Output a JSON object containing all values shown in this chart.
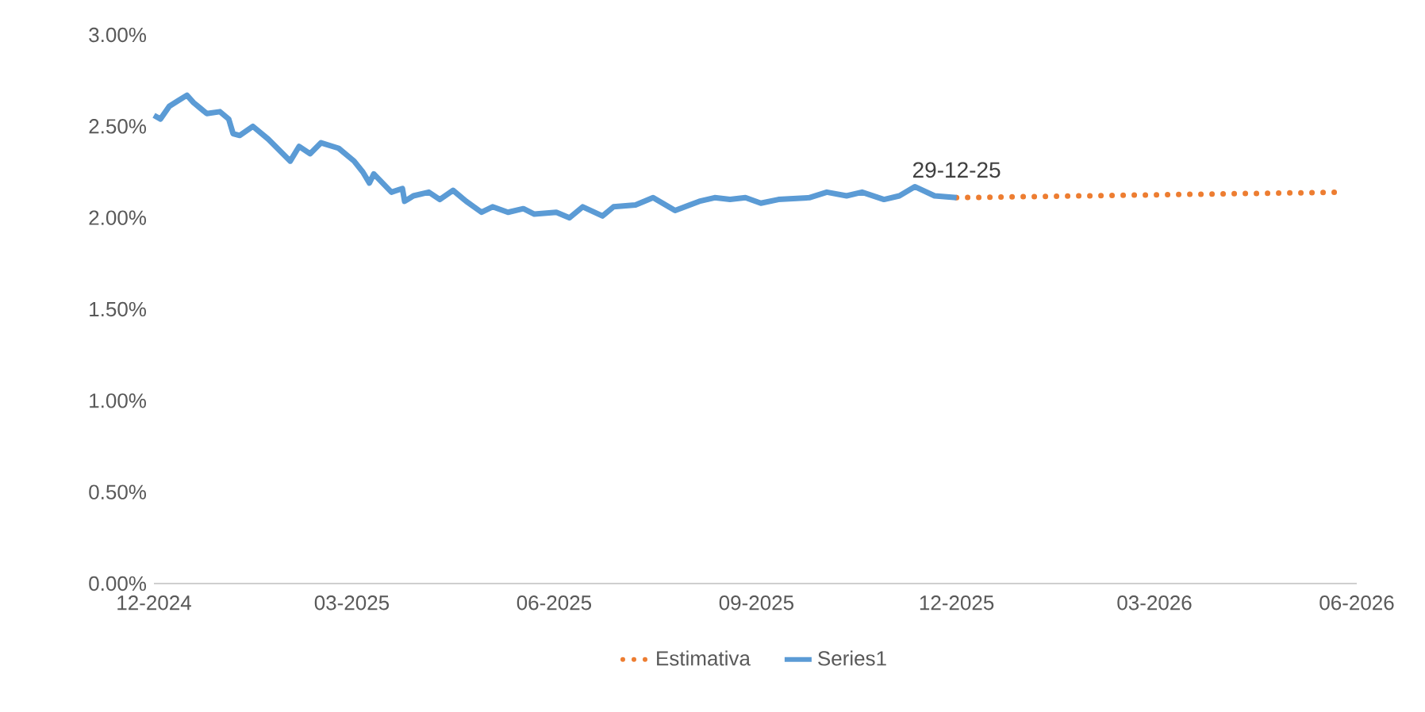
{
  "chart_data": {
    "type": "line",
    "xlim": [
      "2024-12-29",
      "2026-06-29"
    ],
    "xticks": [
      {
        "value": "2024-12-29",
        "label": "12-2024"
      },
      {
        "value": "2025-03-29",
        "label": "03-2025"
      },
      {
        "value": "2025-06-29",
        "label": "06-2025"
      },
      {
        "value": "2025-09-29",
        "label": "09-2025"
      },
      {
        "value": "2025-12-29",
        "label": "12-2025"
      },
      {
        "value": "2026-03-29",
        "label": "03-2026"
      },
      {
        "value": "2026-06-29",
        "label": "06-2026"
      }
    ],
    "ylim": [
      0,
      3
    ],
    "yticks": [
      {
        "value": 0,
        "label": "0.00%"
      },
      {
        "value": 0.5,
        "label": "0.50%"
      },
      {
        "value": 1,
        "label": "1.00%"
      },
      {
        "value": 1.5,
        "label": "1.50%"
      },
      {
        "value": 2,
        "label": "2.00%"
      },
      {
        "value": 2.5,
        "label": "2.50%"
      },
      {
        "value": 3,
        "label": "3.00%"
      }
    ],
    "legend": "bottom",
    "annotations": [
      {
        "text": "29-12-25",
        "x": "2025-12-29",
        "y": 2.11
      }
    ],
    "series": [
      {
        "name": "Estimativa",
        "color": "#ed7d31",
        "line_style": "dotted",
        "x": [
          "2025-12-29",
          "2026-06-23"
        ],
        "values": [
          2.11,
          2.14
        ]
      },
      {
        "name": "Series1",
        "color": "#5b9bd5",
        "line_style": "solid",
        "x": [
          "2024-12-29",
          "2025-01-01",
          "2025-01-05",
          "2025-01-09",
          "2025-01-13",
          "2025-01-16",
          "2025-01-19",
          "2025-01-22",
          "2025-01-28",
          "2025-02-01",
          "2025-02-03",
          "2025-02-06",
          "2025-02-12",
          "2025-02-19",
          "2025-03-01",
          "2025-03-05",
          "2025-03-10",
          "2025-03-15",
          "2025-03-23",
          "2025-03-30",
          "2025-04-03",
          "2025-04-06",
          "2025-04-08",
          "2025-04-16",
          "2025-04-21",
          "2025-04-22",
          "2025-04-26",
          "2025-05-03",
          "2025-05-08",
          "2025-05-14",
          "2025-05-20",
          "2025-05-27",
          "2025-06-01",
          "2025-06-08",
          "2025-06-15",
          "2025-06-20",
          "2025-06-30",
          "2025-07-06",
          "2025-07-12",
          "2025-07-21",
          "2025-07-26",
          "2025-08-05",
          "2025-08-13",
          "2025-08-23",
          "2025-09-03",
          "2025-09-10",
          "2025-09-17",
          "2025-09-24",
          "2025-10-01",
          "2025-10-09",
          "2025-10-23",
          "2025-10-31",
          "2025-11-09",
          "2025-11-16",
          "2025-11-26",
          "2025-12-03",
          "2025-12-10",
          "2025-12-19",
          "2025-12-29"
        ],
        "values": [
          2.56,
          2.54,
          2.61,
          2.64,
          2.67,
          2.63,
          2.6,
          2.57,
          2.58,
          2.54,
          2.46,
          2.45,
          2.5,
          2.43,
          2.31,
          2.39,
          2.35,
          2.41,
          2.38,
          2.31,
          2.25,
          2.19,
          2.24,
          2.14,
          2.16,
          2.09,
          2.12,
          2.14,
          2.1,
          2.15,
          2.09,
          2.03,
          2.06,
          2.03,
          2.05,
          2.02,
          2.03,
          2.0,
          2.06,
          2.01,
          2.06,
          2.07,
          2.11,
          2.04,
          2.09,
          2.11,
          2.1,
          2.11,
          2.08,
          2.1,
          2.11,
          2.14,
          2.12,
          2.14,
          2.1,
          2.12,
          2.17,
          2.12,
          2.11
        ]
      }
    ]
  }
}
